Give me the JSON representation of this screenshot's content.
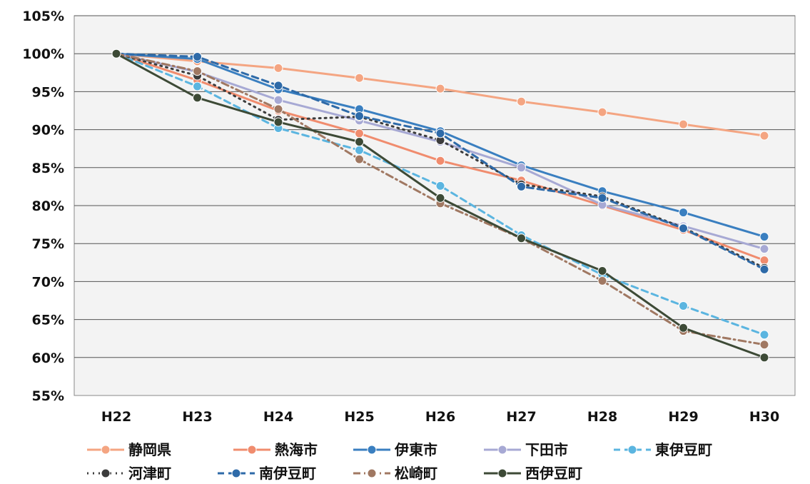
{
  "chart_data": {
    "type": "line",
    "title": "",
    "xlabel": "",
    "ylabel": "",
    "categories": [
      "H22",
      "H23",
      "H24",
      "H25",
      "H26",
      "H27",
      "H28",
      "H29",
      "H30"
    ],
    "y_ticks": [
      "55%",
      "60%",
      "65%",
      "70%",
      "75%",
      "80%",
      "85%",
      "90%",
      "95%",
      "100%",
      "105%"
    ],
    "ylim": [
      55,
      105
    ],
    "y_unit": "%",
    "grid": "horizontal",
    "legend_position": "bottom",
    "series": [
      {
        "name": "静岡県",
        "color": "#f4a582",
        "dash": "solid",
        "values": [
          100,
          99,
          98.1,
          96.8,
          95.4,
          93.7,
          92.3,
          90.7,
          89.2
        ]
      },
      {
        "name": "熱海市",
        "color": "#f08c6e",
        "dash": "solid",
        "values": [
          100,
          96.5,
          92.5,
          89.5,
          85.9,
          83.3,
          80.0,
          76.8,
          72.8
        ]
      },
      {
        "name": "伊東市",
        "color": "#3a7fc0",
        "dash": "solid",
        "values": [
          100,
          99.3,
          95.3,
          92.7,
          89.8,
          85.3,
          81.9,
          79.1,
          75.9
        ]
      },
      {
        "name": "下田市",
        "color": "#a7a9d4",
        "dash": "solid",
        "values": [
          100,
          97.6,
          93.9,
          91.2,
          88.4,
          85.0,
          80.1,
          77.3,
          74.3
        ]
      },
      {
        "name": "東伊豆町",
        "color": "#5bb5e0",
        "dash": "dashed",
        "values": [
          100,
          95.7,
          90.2,
          87.3,
          82.6,
          76.1,
          70.9,
          66.8,
          63.0
        ]
      },
      {
        "name": "河津町",
        "color": "#3c3c3c",
        "dash": "dotted",
        "values": [
          100,
          97.1,
          91.3,
          91.7,
          88.6,
          82.8,
          81.2,
          77.1,
          71.8
        ]
      },
      {
        "name": "南伊豆町",
        "color": "#2e6aa8",
        "dash": "dashed",
        "values": [
          100,
          99.6,
          95.8,
          91.8,
          89.5,
          82.5,
          81.0,
          77.0,
          71.6
        ]
      },
      {
        "name": "松崎町",
        "color": "#a07862",
        "dash": "dashdot",
        "values": [
          100,
          97.7,
          92.7,
          86.1,
          80.3,
          75.7,
          70.1,
          63.5,
          61.7
        ]
      },
      {
        "name": "西伊豆町",
        "color": "#3d4a36",
        "dash": "solid",
        "values": [
          100,
          94.2,
          91.0,
          88.4,
          81.0,
          75.7,
          71.4,
          63.9,
          60.0
        ]
      }
    ]
  }
}
